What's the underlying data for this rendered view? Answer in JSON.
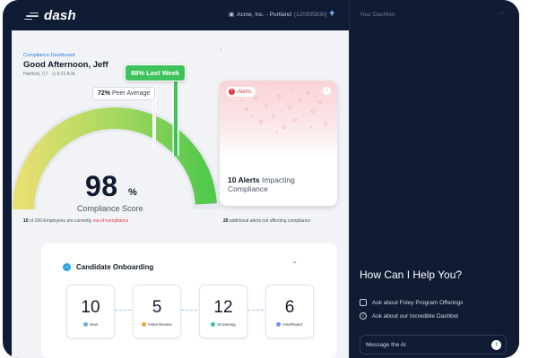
{
  "app": {
    "logo_text": "dash"
  },
  "header": {
    "org_name": "Acme, Inc. - Portland",
    "org_id": "(120305830)",
    "dropdown_icon": "chevron-down",
    "ai_icon": "sparkle"
  },
  "dashboard": {
    "label": "Compliance Dashboard",
    "greeting": "Good Afternoon, Jeff",
    "location": "Hartford, CT",
    "time": "6:21 A.M."
  },
  "compliance": {
    "score": "98",
    "score_unit": "%",
    "score_label": "Compliance Score",
    "peer_value": "72%",
    "peer_label": "Peer Average",
    "last_week_label": "88% Last Week",
    "employees_count": "10",
    "employees_total_text": "of 100 Employees are currently",
    "employees_status": "out-of-compliance",
    "gauge_fraction": 0.98
  },
  "alerts": {
    "pill_label": "Alerts",
    "count_title": "10 Alerts",
    "title_rest": "Impacting Compliance",
    "note_count": "20",
    "note_text": "additional alerts not affecting compliance"
  },
  "onboarding": {
    "title": "Candidate Onboarding",
    "stages": [
      {
        "count": "10",
        "label": "New",
        "color": "#6fa8ea"
      },
      {
        "count": "5",
        "label": "Initial Review",
        "color": "#f2a33a"
      },
      {
        "count": "12",
        "label": "Screening",
        "color": "#39c2b0"
      },
      {
        "count": "6",
        "label": "Hire/Reject",
        "color": "#7c8fe0"
      }
    ]
  },
  "sidebar": {
    "title": "Your Dashbot",
    "menu_icon": "ellipsis",
    "help_heading": "How Can I Help You?",
    "suggestions": [
      "Ask about Foley Program Offerings",
      "Ask about our Incredible Dashbot"
    ],
    "input_placeholder": "Message the AI",
    "send_icon": "arrow-up"
  },
  "colors": {
    "navy": "#0f1c33",
    "accent_blue": "#2a7bd8",
    "green": "#3ec25b",
    "alert_red": "#e0393e"
  }
}
